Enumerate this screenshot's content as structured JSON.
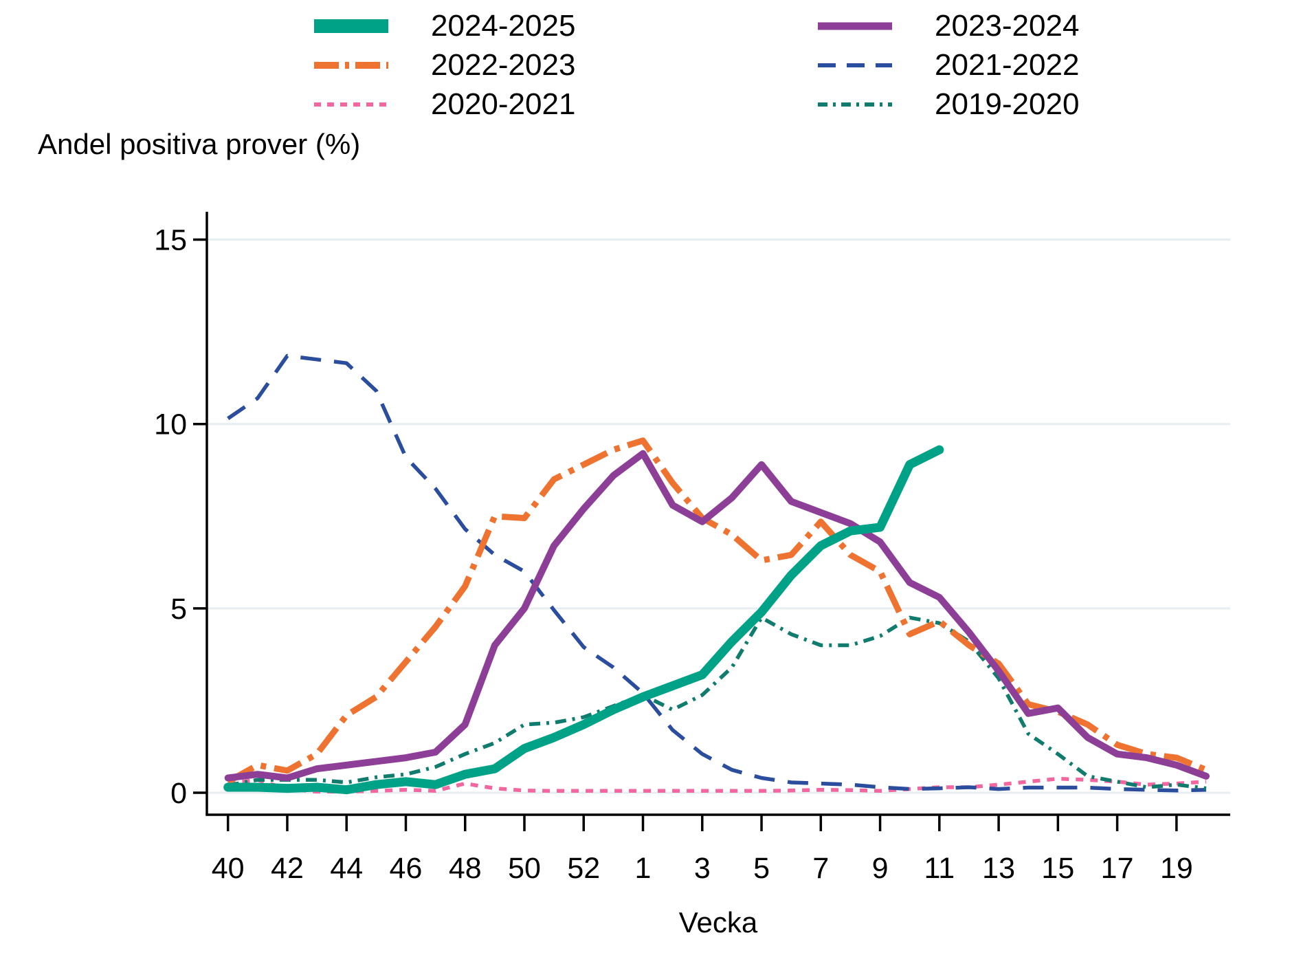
{
  "title": "Andel positiva prover (%)",
  "legend": {
    "items": [
      {
        "label": "2024-2025",
        "color": "#00a287",
        "dash": "solid",
        "weight": 20,
        "plot_weight": 13,
        "z": 6
      },
      {
        "label": "2023-2024",
        "color": "#8d3f98",
        "dash": "solid",
        "weight": 11,
        "plot_weight": 10,
        "z": 5
      },
      {
        "label": "2022-2023",
        "color": "#ef7330",
        "dash": "longdash-dot",
        "weight": 10,
        "plot_weight": 9,
        "z": 4
      },
      {
        "label": "2021-2022",
        "color": "#2b4d9e",
        "dash": "dash",
        "weight": 6,
        "plot_weight": 5.5,
        "z": 2
      },
      {
        "label": "2020-2021",
        "color": "#f2679f",
        "dash": "dot",
        "weight": 6,
        "plot_weight": 5.5,
        "z": 1
      },
      {
        "label": "2019-2020",
        "color": "#107c6e",
        "dash": "dash-dot",
        "weight": 6,
        "plot_weight": 5.5,
        "z": 3
      }
    ]
  },
  "chart_data": {
    "type": "line",
    "title": "Andel positiva prover (%)",
    "xlabel": "Vecka",
    "ylabel": "Andel positiva prover (%)",
    "grid": "horizontal",
    "legend_position": "top-center",
    "ylim": [
      0,
      16.3
    ],
    "x_categories": [
      "40",
      "41",
      "42",
      "43",
      "44",
      "45",
      "46",
      "47",
      "48",
      "49",
      "50",
      "51",
      "52",
      "53",
      "1",
      "2",
      "3",
      "4",
      "5",
      "6",
      "7",
      "8",
      "9",
      "10",
      "11",
      "12",
      "13",
      "14",
      "15",
      "16",
      "17",
      "18",
      "19",
      "20"
    ],
    "x_ticks": [
      {
        "index": 0,
        "label": "40"
      },
      {
        "index": 2,
        "label": "42"
      },
      {
        "index": 4,
        "label": "44"
      },
      {
        "index": 6,
        "label": "46"
      },
      {
        "index": 8,
        "label": "48"
      },
      {
        "index": 10,
        "label": "50"
      },
      {
        "index": 12,
        "label": "52"
      },
      {
        "index": 14,
        "label": "1"
      },
      {
        "index": 16,
        "label": "3"
      },
      {
        "index": 18,
        "label": "5"
      },
      {
        "index": 20,
        "label": "7"
      },
      {
        "index": 22,
        "label": "9"
      },
      {
        "index": 24,
        "label": "11"
      },
      {
        "index": 26,
        "label": "13"
      },
      {
        "index": 28,
        "label": "15"
      },
      {
        "index": 30,
        "label": "17"
      },
      {
        "index": 32,
        "label": "19"
      }
    ],
    "y_ticks": [
      {
        "value": 0,
        "label": "0"
      },
      {
        "value": 5,
        "label": "5"
      },
      {
        "value": 10,
        "label": "10"
      },
      {
        "value": 15,
        "label": "15"
      }
    ],
    "series": [
      {
        "name": "2024-2025",
        "values": [
          0.15,
          0.15,
          0.12,
          0.15,
          0.08,
          0.22,
          0.3,
          0.22,
          0.5,
          0.65,
          1.2,
          1.5,
          1.85,
          2.25,
          2.6,
          2.9,
          3.2,
          4.1,
          4.9,
          5.9,
          6.7,
          7.1,
          7.2,
          8.9,
          9.3,
          null,
          null,
          null,
          null,
          null,
          null,
          null,
          null,
          null
        ]
      },
      {
        "name": "2023-2024",
        "values": [
          0.4,
          0.5,
          0.4,
          0.65,
          0.75,
          0.85,
          0.95,
          1.1,
          1.85,
          4.0,
          5.0,
          6.7,
          7.7,
          8.6,
          9.2,
          7.8,
          7.35,
          8.0,
          8.9,
          7.9,
          7.6,
          7.3,
          6.8,
          5.7,
          5.3,
          4.35,
          3.3,
          2.15,
          2.3,
          1.5,
          1.05,
          0.95,
          0.75,
          0.45
        ]
      },
      {
        "name": "2022-2023",
        "values": [
          0.3,
          0.75,
          0.6,
          1.05,
          2.1,
          2.6,
          3.55,
          4.5,
          5.6,
          7.5,
          7.45,
          8.5,
          8.9,
          9.3,
          9.55,
          8.4,
          7.45,
          7.0,
          6.3,
          6.45,
          7.35,
          6.45,
          6.0,
          4.3,
          4.65,
          4.0,
          3.5,
          2.4,
          2.2,
          1.85,
          1.3,
          1.05,
          0.95,
          0.62
        ]
      },
      {
        "name": "2021-2022",
        "values": [
          10.15,
          10.7,
          11.85,
          11.75,
          11.65,
          10.9,
          9.1,
          8.25,
          7.15,
          6.45,
          6.0,
          4.95,
          3.95,
          3.4,
          2.7,
          1.7,
          1.05,
          0.62,
          0.4,
          0.28,
          0.25,
          0.22,
          0.15,
          0.1,
          0.12,
          0.15,
          0.1,
          0.14,
          0.14,
          0.14,
          0.1,
          0.08,
          0.06,
          0.08
        ]
      },
      {
        "name": "2020-2021",
        "values": [
          0.25,
          0.35,
          0.1,
          0.03,
          0.03,
          0.05,
          0.08,
          0.05,
          0.25,
          0.12,
          0.06,
          0.05,
          0.05,
          0.05,
          0.05,
          0.05,
          0.05,
          0.05,
          0.05,
          0.06,
          0.08,
          0.07,
          0.05,
          0.1,
          0.15,
          0.15,
          0.22,
          0.3,
          0.38,
          0.35,
          0.3,
          0.22,
          0.25,
          0.3
        ]
      },
      {
        "name": "2019-2020",
        "values": [
          0.2,
          0.35,
          0.35,
          0.35,
          0.28,
          0.42,
          0.5,
          0.7,
          1.05,
          1.35,
          1.85,
          1.9,
          2.05,
          2.35,
          2.65,
          2.25,
          2.65,
          3.4,
          4.75,
          4.3,
          4.0,
          4.0,
          4.25,
          4.75,
          4.6,
          4.1,
          3.1,
          1.6,
          1.05,
          0.45,
          0.3,
          0.15,
          0.22,
          0.12
        ]
      }
    ],
    "colors": {
      "grid": "#e7eef1",
      "axis": "#000000",
      "background": "#ffffff"
    }
  }
}
